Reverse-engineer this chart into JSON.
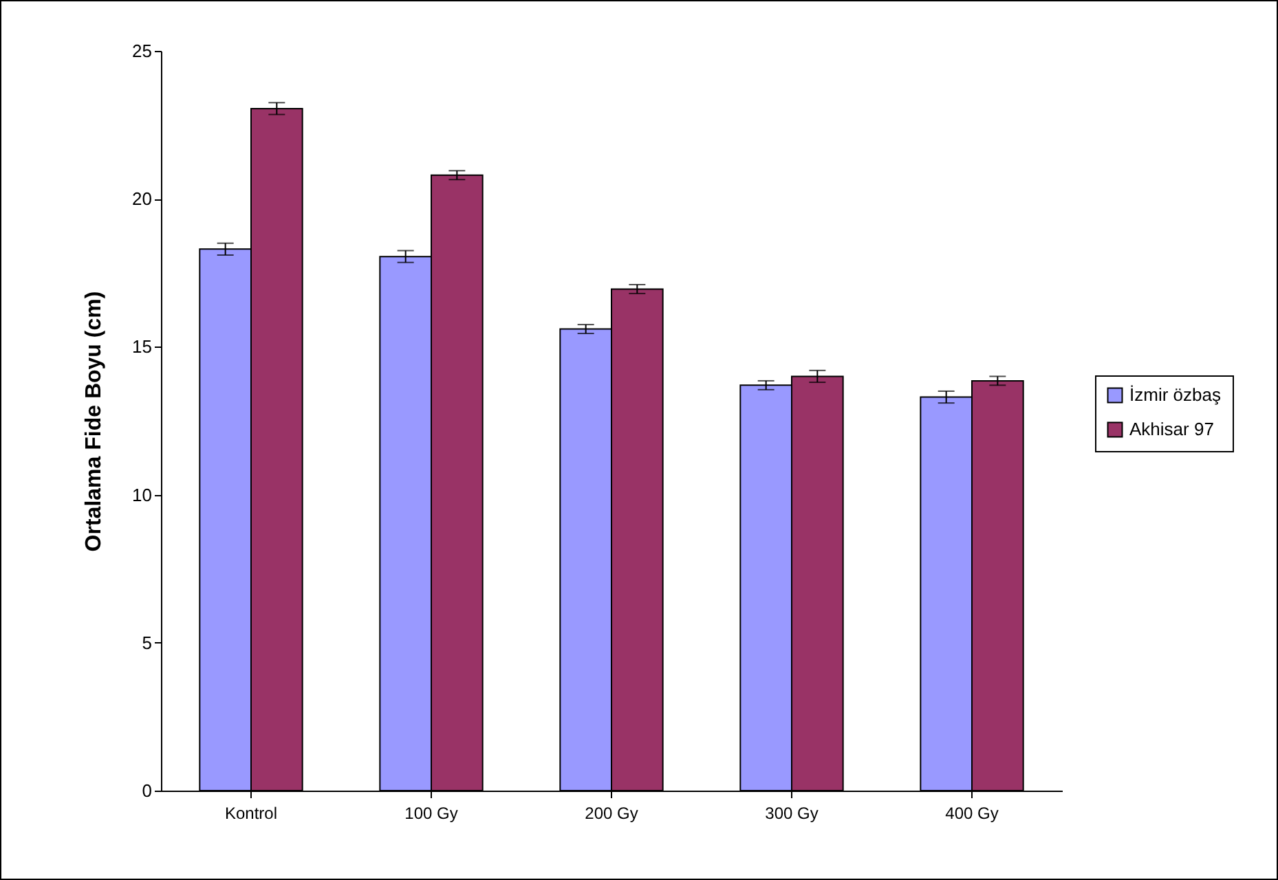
{
  "chart_data": {
    "type": "bar",
    "ylabel": "Ortalama Fide Boyu (cm)",
    "categories": [
      "Kontrol",
      "100 Gy",
      "200 Gy",
      "300 Gy",
      "400 Gy"
    ],
    "series": [
      {
        "name": "İzmir özbaş",
        "color": "#9999ff",
        "values": [
          18.3,
          18.05,
          15.6,
          13.7,
          13.3
        ],
        "errors": [
          0.2,
          0.2,
          0.15,
          0.15,
          0.2
        ]
      },
      {
        "name": "Akhisar 97",
        "color": "#993366",
        "values": [
          23.05,
          20.8,
          16.95,
          14.0,
          13.85
        ],
        "errors": [
          0.2,
          0.15,
          0.15,
          0.2,
          0.15
        ]
      }
    ],
    "ylim": [
      0,
      25
    ],
    "yticks": [
      0,
      5,
      10,
      15,
      20,
      25
    ],
    "grid": false,
    "legend": "right"
  }
}
